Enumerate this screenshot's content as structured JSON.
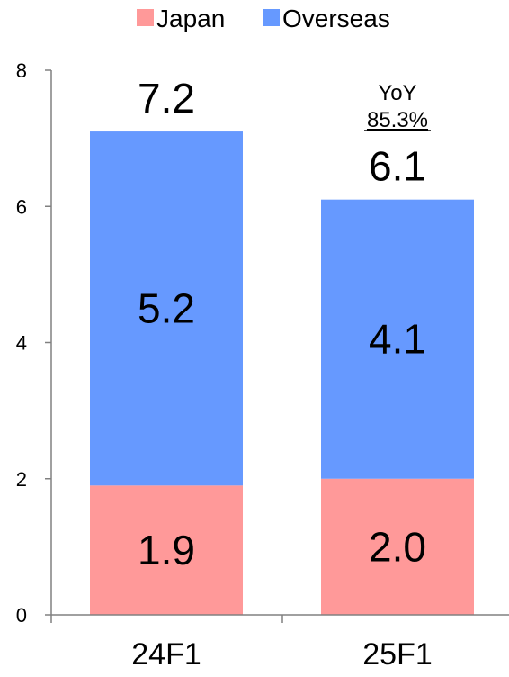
{
  "chart_data": {
    "type": "bar",
    "stacked": true,
    "categories": [
      "24F1",
      "25F1"
    ],
    "series": [
      {
        "name": "Japan",
        "values": [
          1.9,
          2.0
        ],
        "color": "#ff9999",
        "labels": [
          "1.9",
          "2.0"
        ]
      },
      {
        "name": "Overseas",
        "values": [
          5.2,
          4.1
        ],
        "color": "#6699ff",
        "labels": [
          "5.2",
          "4.1"
        ]
      }
    ],
    "totals": [
      7.1,
      6.1
    ],
    "total_labels": [
      "7.2",
      "6.1"
    ],
    "annotation": {
      "title": "YoY",
      "value": "85.3%",
      "category": "25F1"
    },
    "yticks": [
      "0",
      "2",
      "4",
      "6",
      "8"
    ],
    "ylim": [
      0,
      8
    ],
    "grid": false,
    "legend_position": "top"
  }
}
